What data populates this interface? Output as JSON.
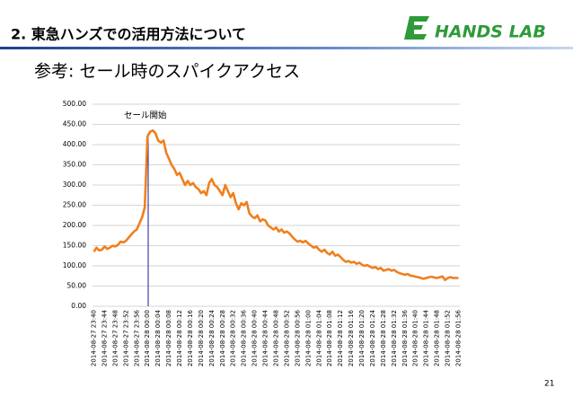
{
  "header": {
    "title": "2. 東急ハンズでの活用方法について",
    "logo": "HANDS LAB"
  },
  "subtitle": "参考: セール時のスパイクアクセス",
  "page_number": "21",
  "chart_data": {
    "type": "line",
    "annotation": "セール開始",
    "color": "#f07f1d",
    "grid": true,
    "ylim": [
      0,
      500
    ],
    "yticks": [
      {
        "value": 0,
        "label": "0.00"
      },
      {
        "value": 50,
        "label": "50.00"
      },
      {
        "value": 100,
        "label": "100.00"
      },
      {
        "value": 150,
        "label": "150.00"
      },
      {
        "value": 200,
        "label": "200.00"
      },
      {
        "value": 250,
        "label": "250.00"
      },
      {
        "value": 300,
        "label": "300.00"
      },
      {
        "value": 350,
        "label": "350.00"
      },
      {
        "value": 400,
        "label": "400.00"
      },
      {
        "value": 450,
        "label": "450.00"
      },
      {
        "value": 500,
        "label": "500.00"
      }
    ],
    "categories": [
      "2014-08-27 23:40",
      null,
      null,
      null,
      "2014-08-27 23:44",
      null,
      null,
      null,
      "2014-08-27 23:48",
      null,
      null,
      null,
      "2014-08-27 23:52",
      null,
      null,
      null,
      "2014-08-27 23:56",
      null,
      null,
      null,
      "2014-08-28 00:00",
      null,
      null,
      null,
      "2014-08-28 00:04",
      null,
      null,
      null,
      "2014-08-28 00:08",
      null,
      null,
      null,
      "2014-08-28 00:12",
      null,
      null,
      null,
      "2014-08-28 00:16",
      null,
      null,
      null,
      "2014-08-28 00:20",
      null,
      null,
      null,
      "2014-08-28 00:24",
      null,
      null,
      null,
      "2014-08-28 00:28",
      null,
      null,
      null,
      "2014-08-28 00:32",
      null,
      null,
      null,
      "2014-08-28 00:36",
      null,
      null,
      null,
      "2014-08-28 00:40",
      null,
      null,
      null,
      "2014-08-28 00:44",
      null,
      null,
      null,
      "2014-08-28 00:48",
      null,
      null,
      null,
      "2014-08-28 00:52",
      null,
      null,
      null,
      "2014-08-28 00:56",
      null,
      null,
      null,
      "2014-08-28 01:00",
      null,
      null,
      null,
      "2014-08-28 01:04",
      null,
      null,
      null,
      "2014-08-28 01:08",
      null,
      null,
      null,
      "2014-08-28 01:12",
      null,
      null,
      null,
      "2014-08-28 01:16",
      null,
      null,
      null,
      "2014-08-28 01:20",
      null,
      null,
      null,
      "2014-08-28 01:24",
      null,
      null,
      null,
      "2014-08-28 01:28",
      null,
      null,
      null,
      "2014-08-28 01:32",
      null,
      null,
      null,
      "2014-08-28 01:36",
      null,
      null,
      null,
      "2014-08-28 01:40",
      null,
      null,
      null,
      "2014-08-28 01:44",
      null,
      null,
      null,
      "2014-08-28 01:48",
      null,
      null,
      null,
      "2014-08-28 01:52",
      null,
      null,
      null,
      "2014-08-28 01:56"
    ],
    "values": [
      135,
      145,
      138,
      140,
      148,
      142,
      145,
      150,
      148,
      152,
      160,
      158,
      162,
      170,
      178,
      185,
      190,
      205,
      220,
      245,
      420,
      432,
      435,
      428,
      410,
      405,
      410,
      380,
      365,
      350,
      340,
      325,
      330,
      315,
      300,
      310,
      300,
      305,
      295,
      290,
      280,
      285,
      275,
      305,
      315,
      300,
      295,
      285,
      275,
      300,
      285,
      270,
      280,
      255,
      240,
      255,
      250,
      258,
      230,
      222,
      218,
      225,
      210,
      215,
      212,
      200,
      195,
      190,
      195,
      185,
      190,
      182,
      185,
      180,
      172,
      165,
      160,
      162,
      158,
      162,
      155,
      150,
      145,
      148,
      140,
      135,
      140,
      132,
      128,
      135,
      125,
      128,
      122,
      115,
      110,
      112,
      108,
      110,
      105,
      108,
      103,
      100,
      102,
      98,
      95,
      97,
      92,
      95,
      88,
      90,
      92,
      88,
      90,
      85,
      82,
      80,
      78,
      80,
      76,
      75,
      73,
      72,
      70,
      68,
      70,
      72,
      73,
      71,
      70,
      72,
      74,
      65,
      70,
      72,
      70,
      70,
      70
    ]
  }
}
